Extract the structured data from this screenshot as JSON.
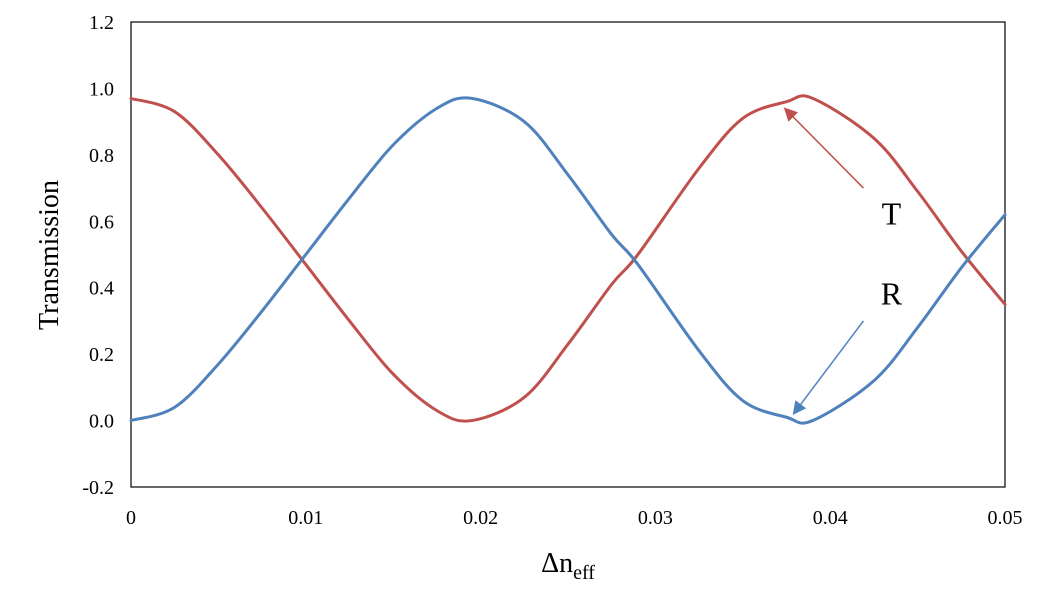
{
  "chart_data": {
    "type": "line",
    "title": "",
    "xlabel_main": "Δn",
    "xlabel_sub": "eff",
    "ylabel": "Transmission",
    "xlim": [
      0,
      0.05
    ],
    "ylim": [
      -0.2,
      1.2
    ],
    "grid": false,
    "legend": "none",
    "x_ticks": [
      0,
      0.01,
      0.02,
      0.03,
      0.04,
      0.05
    ],
    "x_tick_labels": [
      "0",
      "0.01",
      "0.02",
      "0.03",
      "0.04",
      "0.05"
    ],
    "y_ticks": [
      -0.2,
      0.0,
      0.2,
      0.4,
      0.6,
      0.8,
      1.0,
      1.2
    ],
    "y_tick_labels": [
      "-0.2",
      "0.0",
      "0.2",
      "0.4",
      "0.6",
      "0.8",
      "1.0",
      "1.2"
    ],
    "series": [
      {
        "key": "T",
        "color": "#c0504d",
        "x": [
          0,
          0.0025,
          0.005,
          0.0075,
          0.01,
          0.0125,
          0.015,
          0.0175,
          0.0195,
          0.0225,
          0.025,
          0.0275,
          0.029,
          0.0325,
          0.035,
          0.0375,
          0.039,
          0.0425,
          0.045,
          0.0475,
          0.05
        ],
        "y": [
          0.97,
          0.93,
          0.8,
          0.64,
          0.47,
          0.3,
          0.14,
          0.03,
          0.0,
          0.07,
          0.23,
          0.41,
          0.5,
          0.76,
          0.91,
          0.96,
          0.97,
          0.85,
          0.69,
          0.51,
          0.35
        ]
      },
      {
        "key": "R",
        "color": "#4f81bd",
        "x": [
          0,
          0.0025,
          0.005,
          0.0075,
          0.01,
          0.0125,
          0.015,
          0.0175,
          0.0195,
          0.0225,
          0.025,
          0.0275,
          0.029,
          0.0325,
          0.035,
          0.0375,
          0.039,
          0.0425,
          0.045,
          0.0475,
          0.05
        ],
        "y": [
          0.0,
          0.04,
          0.17,
          0.33,
          0.5,
          0.67,
          0.83,
          0.94,
          0.97,
          0.9,
          0.74,
          0.56,
          0.47,
          0.21,
          0.06,
          0.01,
          0.0,
          0.12,
          0.28,
          0.46,
          0.62
        ]
      }
    ],
    "annotations": [
      {
        "label": "T",
        "series": "T",
        "label_at": [
          0.0435,
          0.59
        ],
        "arrow_from": [
          0.0419,
          0.7
        ],
        "arrow_to": [
          0.0374,
          0.94
        ]
      },
      {
        "label": "R",
        "series": "R",
        "label_at": [
          0.0435,
          0.35
        ],
        "arrow_from": [
          0.0419,
          0.3
        ],
        "arrow_to": [
          0.0379,
          0.02
        ]
      }
    ]
  }
}
